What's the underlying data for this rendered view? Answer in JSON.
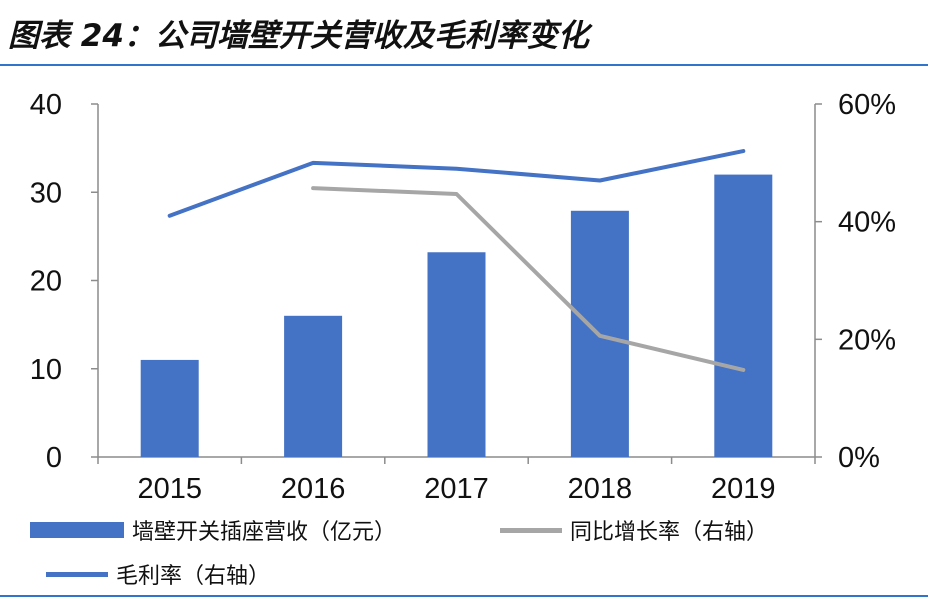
{
  "title": "图表 24：公司墙壁开关营收及毛利率变化",
  "chart_data": {
    "type": "bar",
    "categories": [
      "2015",
      "2016",
      "2017",
      "2018",
      "2019"
    ],
    "series": [
      {
        "name": "墙壁开关插座营收（亿元）",
        "type": "bar",
        "axis": "left",
        "values": [
          11,
          16,
          23.2,
          27.9,
          32
        ],
        "color": "#4472c4"
      },
      {
        "name": "同比增长率（右轴）",
        "type": "line",
        "axis": "right",
        "values": [
          null,
          0.457,
          0.447,
          0.206,
          0.148
        ],
        "color": "#a6a6a6"
      },
      {
        "name": "毛利率（右轴）",
        "type": "line",
        "axis": "right",
        "values": [
          0.41,
          0.5,
          0.49,
          0.47,
          0.52
        ],
        "color": "#4472c4"
      }
    ],
    "ylim_left": [
      0,
      40
    ],
    "yticks_left": [
      "0",
      "10",
      "20",
      "30",
      "40"
    ],
    "ylim_right": [
      0,
      0.6
    ],
    "yticks_right": [
      "0%",
      "20%",
      "40%",
      "60%"
    ],
    "grid": false,
    "legend_position": "bottom"
  }
}
